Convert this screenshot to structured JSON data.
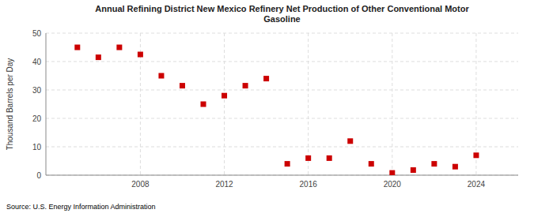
{
  "chart_data": {
    "type": "scatter",
    "title": "Annual Refining District New Mexico Refinery Net Production of Other Conventional Motor\nGasoline",
    "y_label": "Thousand Barrels per Day",
    "source": "Source: U.S. Energy Information Administration",
    "x": [
      2005,
      2006,
      2007,
      2008,
      2009,
      2010,
      2011,
      2012,
      2013,
      2014,
      2015,
      2016,
      2017,
      2018,
      2019,
      2020,
      2021,
      2022,
      2023,
      2024
    ],
    "values": [
      45,
      41.5,
      45,
      42.5,
      35,
      31.5,
      25,
      28,
      31.5,
      34,
      4,
      6,
      6,
      12,
      4,
      0.8,
      1.8,
      4,
      3,
      7
    ],
    "color": "#cc0000",
    "marker": "square",
    "xlim": [
      2003.5,
      2026
    ],
    "ylim": [
      0,
      50
    ],
    "xticks": [
      2008,
      2012,
      2016,
      2020,
      2024
    ],
    "yticks": [
      0,
      10,
      20,
      30,
      40,
      50
    ],
    "grid": true
  }
}
